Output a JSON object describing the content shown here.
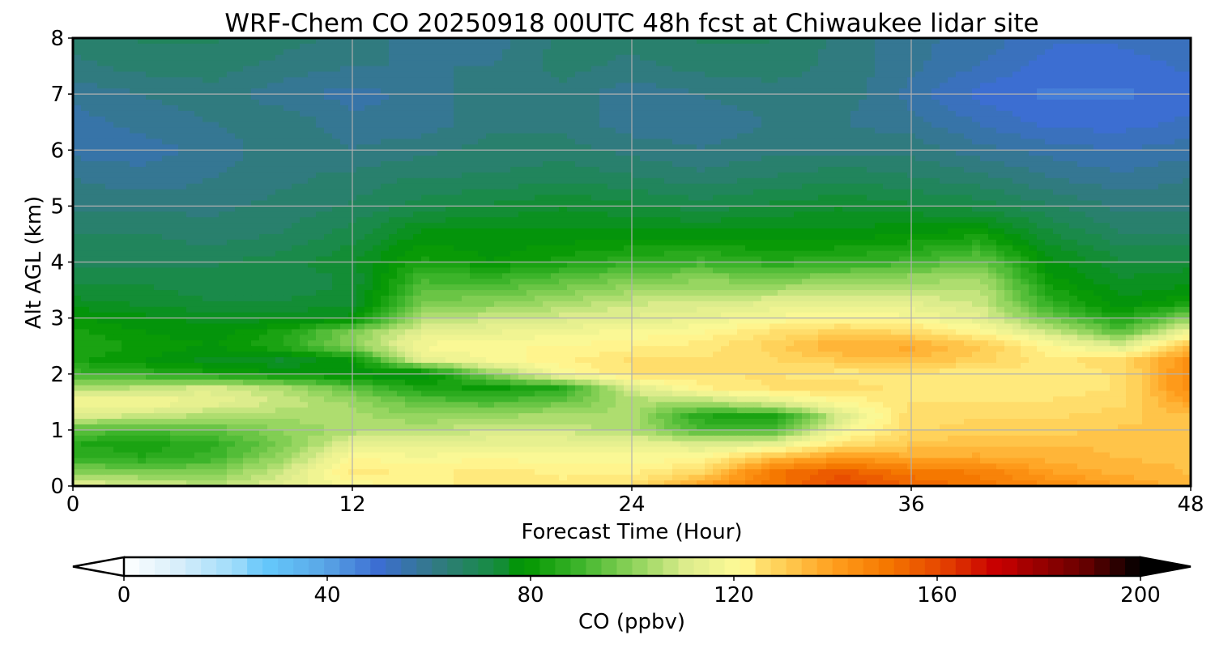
{
  "chart_data": {
    "type": "heatmap",
    "title": "WRF-Chem CO  20250918 00UTC 48h fcst at Chiwaukee lidar site",
    "xlabel": "Forecast Time (Hour)",
    "ylabel": "Alt AGL (km)",
    "xlim": [
      0,
      48
    ],
    "ylim": [
      0,
      8
    ],
    "x_ticks": [
      "0",
      "12",
      "24",
      "36",
      "48"
    ],
    "y_ticks": [
      "0",
      "1",
      "2",
      "3",
      "4",
      "5",
      "6",
      "7",
      "8"
    ],
    "grid": true,
    "colorbar": {
      "label": "CO  (ppbv)",
      "ticks": [
        "0",
        "40",
        "80",
        "120",
        "160",
        "200"
      ],
      "range": [
        0,
        200
      ],
      "extend": "both",
      "colors": [
        "#ffffff",
        "#d8eefa",
        "#a0dcfa",
        "#64c6fa",
        "#5aa6e6",
        "#3c6ed2",
        "#347888",
        "#1a8a4a",
        "#009600",
        "#3cb42a",
        "#8cd25a",
        "#dcec8c",
        "#fffa96",
        "#ffd25a",
        "#ffa01e",
        "#f57800",
        "#e64600",
        "#c80000",
        "#a00000",
        "#640000",
        "#000000"
      ]
    },
    "x": [
      0,
      3,
      6,
      9,
      12,
      15,
      18,
      21,
      24,
      27,
      30,
      33,
      36,
      39,
      42,
      45,
      48
    ],
    "y": [
      0,
      0.25,
      0.5,
      0.75,
      1.0,
      1.25,
      1.5,
      1.75,
      2.0,
      2.25,
      2.5,
      2.75,
      3.0,
      3.25,
      3.5,
      3.75,
      4.0,
      4.5,
      5.0,
      5.5,
      6.0,
      6.5,
      7.0,
      7.5,
      8.0
    ],
    "z": [
      [
        112,
        110,
        106,
        112,
        118,
        122,
        124,
        124,
        126,
        140,
        150,
        160,
        154,
        150,
        146,
        140,
        136
      ],
      [
        100,
        98,
        98,
        108,
        124,
        122,
        124,
        122,
        122,
        128,
        150,
        156,
        150,
        148,
        140,
        136,
        134
      ],
      [
        88,
        86,
        90,
        102,
        120,
        118,
        120,
        118,
        118,
        120,
        134,
        142,
        138,
        138,
        136,
        134,
        134
      ],
      [
        86,
        84,
        88,
        98,
        112,
        112,
        114,
        114,
        114,
        110,
        112,
        126,
        132,
        134,
        134,
        134,
        132
      ],
      [
        94,
        92,
        94,
        100,
        104,
        106,
        108,
        108,
        104,
        92,
        92,
        116,
        128,
        130,
        130,
        132,
        132
      ],
      [
        110,
        108,
        104,
        104,
        104,
        100,
        102,
        104,
        104,
        86,
        84,
        110,
        128,
        128,
        128,
        130,
        134
      ],
      [
        118,
        118,
        114,
        108,
        102,
        94,
        92,
        96,
        104,
        104,
        112,
        120,
        126,
        126,
        126,
        128,
        140
      ],
      [
        104,
        106,
        110,
        104,
        94,
        84,
        82,
        86,
        110,
        122,
        126,
        128,
        124,
        124,
        124,
        126,
        146
      ],
      [
        90,
        88,
        84,
        80,
        78,
        76,
        100,
        118,
        126,
        126,
        126,
        124,
        124,
        124,
        124,
        126,
        146
      ],
      [
        84,
        80,
        76,
        74,
        80,
        112,
        118,
        122,
        126,
        126,
        128,
        132,
        134,
        130,
        124,
        128,
        144
      ],
      [
        86,
        82,
        80,
        86,
        100,
        118,
        120,
        120,
        122,
        124,
        130,
        138,
        138,
        132,
        120,
        110,
        134
      ],
      [
        84,
        80,
        78,
        84,
        98,
        112,
        114,
        116,
        118,
        120,
        126,
        130,
        128,
        120,
        108,
        94,
        116
      ],
      [
        80,
        78,
        76,
        76,
        78,
        104,
        108,
        110,
        112,
        114,
        118,
        120,
        118,
        112,
        96,
        84,
        100
      ],
      [
        76,
        74,
        72,
        72,
        74,
        98,
        100,
        104,
        108,
        110,
        112,
        114,
        112,
        108,
        88,
        78,
        84
      ],
      [
        72,
        72,
        70,
        70,
        72,
        94,
        94,
        98,
        102,
        104,
        104,
        106,
        106,
        106,
        84,
        76,
        78
      ],
      [
        70,
        70,
        70,
        70,
        72,
        90,
        88,
        92,
        96,
        98,
        96,
        98,
        100,
        102,
        80,
        74,
        76
      ],
      [
        68,
        68,
        68,
        70,
        74,
        84,
        80,
        84,
        88,
        90,
        86,
        88,
        90,
        96,
        78,
        72,
        72
      ],
      [
        66,
        66,
        64,
        66,
        70,
        78,
        78,
        78,
        78,
        78,
        78,
        78,
        80,
        82,
        72,
        66,
        66
      ],
      [
        62,
        62,
        62,
        64,
        66,
        70,
        72,
        74,
        72,
        70,
        72,
        74,
        72,
        70,
        66,
        62,
        62
      ],
      [
        60,
        58,
        60,
        62,
        64,
        66,
        66,
        68,
        66,
        64,
        66,
        68,
        66,
        64,
        60,
        58,
        60
      ],
      [
        56,
        56,
        58,
        62,
        60,
        62,
        64,
        64,
        62,
        60,
        62,
        62,
        62,
        58,
        56,
        54,
        56
      ],
      [
        56,
        58,
        60,
        62,
        58,
        58,
        62,
        62,
        58,
        58,
        60,
        60,
        58,
        54,
        50,
        50,
        52
      ],
      [
        58,
        60,
        62,
        58,
        56,
        58,
        62,
        62,
        58,
        60,
        62,
        62,
        56,
        50,
        48,
        48,
        50
      ],
      [
        62,
        64,
        64,
        62,
        60,
        60,
        60,
        64,
        62,
        64,
        64,
        62,
        58,
        54,
        50,
        50,
        52
      ],
      [
        64,
        66,
        66,
        64,
        62,
        58,
        58,
        64,
        64,
        66,
        66,
        62,
        58,
        56,
        52,
        52,
        54
      ]
    ]
  }
}
